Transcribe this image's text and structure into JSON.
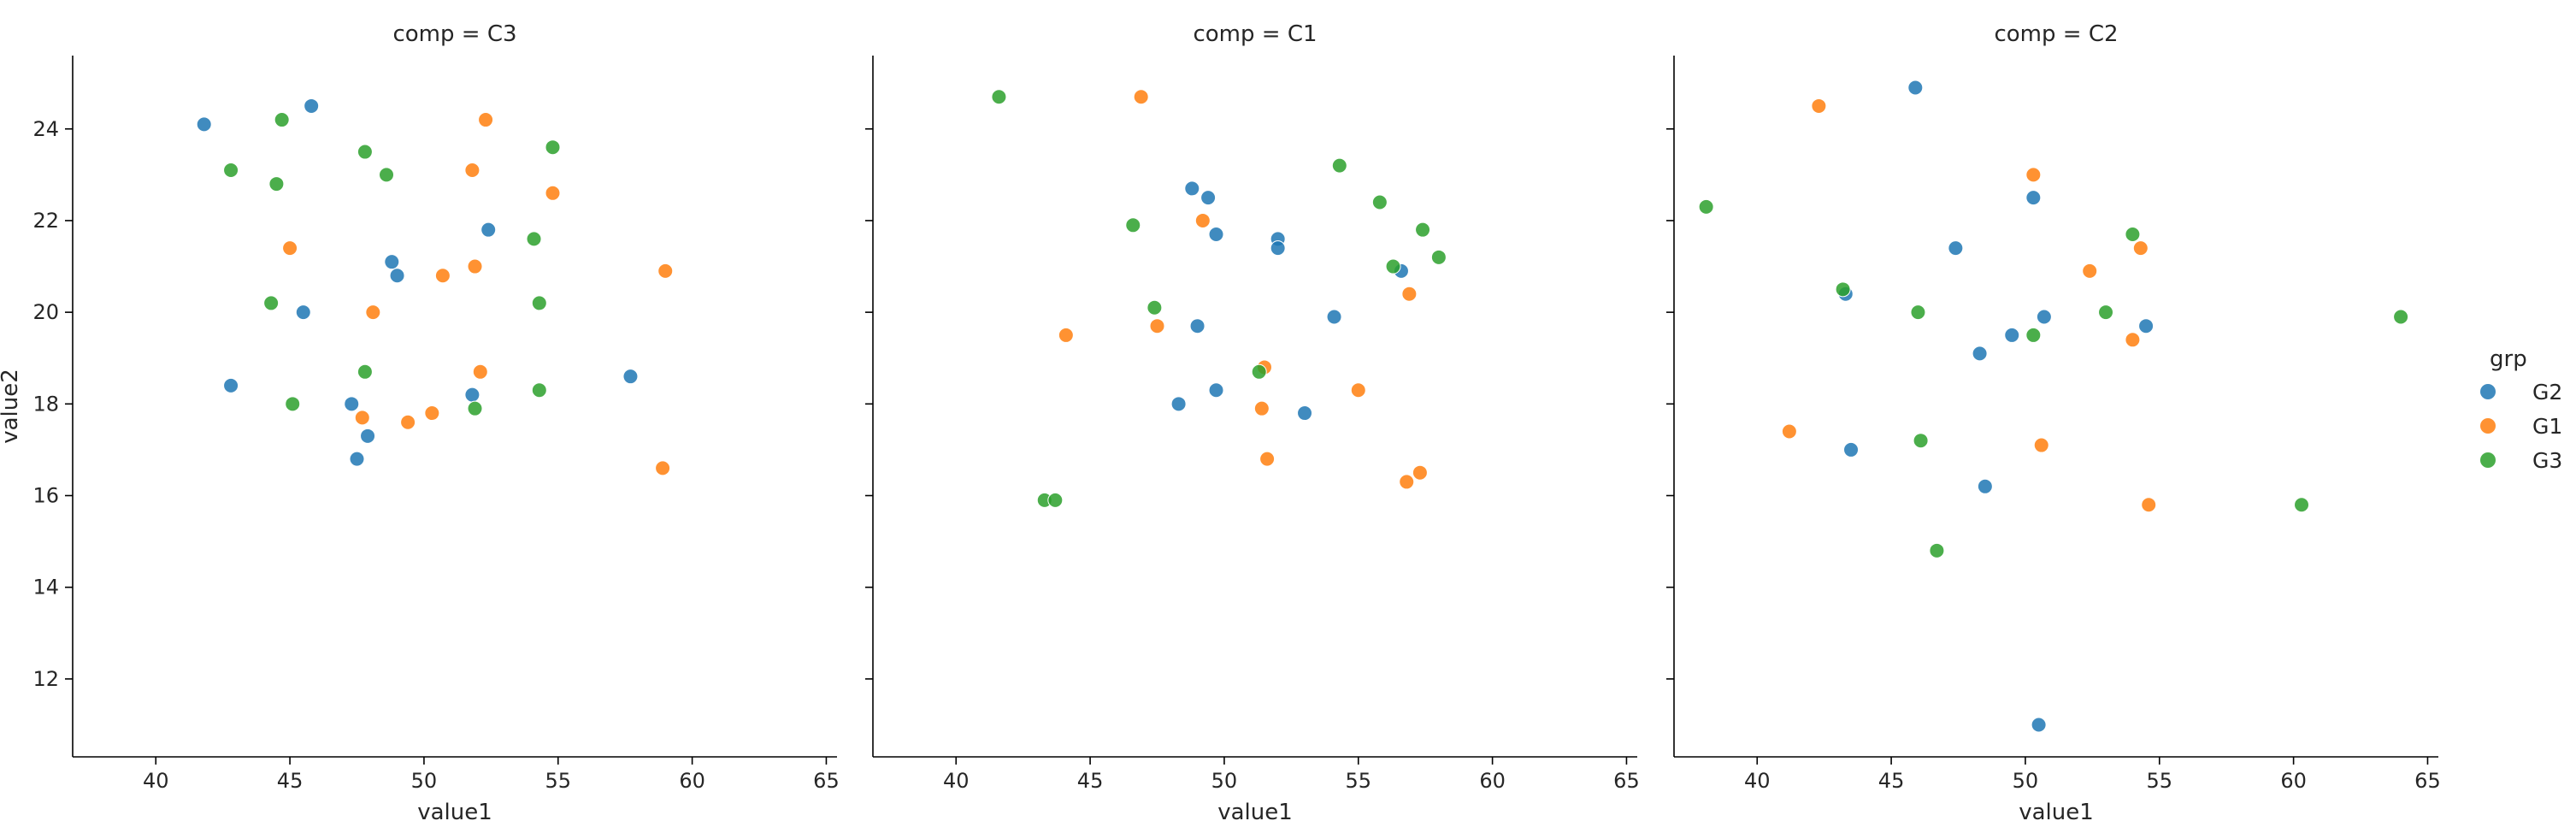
{
  "chart_data": {
    "type": "scatter",
    "xlabel": "value1",
    "ylabel": "value2",
    "xlim": [
      36.9,
      65.4
    ],
    "ylim": [
      10.3,
      25.6
    ],
    "xticks": [
      40,
      45,
      50,
      55,
      60,
      65
    ],
    "yticks": [
      12,
      14,
      16,
      18,
      20,
      22,
      24
    ],
    "grid": false,
    "legend": {
      "title": "grp",
      "position": "right",
      "entries": [
        {
          "name": "G2",
          "color": "#1f77b4"
        },
        {
          "name": "G1",
          "color": "#ff7f0e"
        },
        {
          "name": "G3",
          "color": "#2ca02c"
        }
      ]
    },
    "facets": [
      {
        "title": "comp = C3",
        "series": [
          {
            "name": "G2",
            "points": [
              [
                41.8,
                24.1
              ],
              [
                45.8,
                24.5
              ],
              [
                48.8,
                21.1
              ],
              [
                49.0,
                20.8
              ],
              [
                52.4,
                21.8
              ],
              [
                45.5,
                20.0
              ],
              [
                42.8,
                18.4
              ],
              [
                47.3,
                18.0
              ],
              [
                47.9,
                17.3
              ],
              [
                47.5,
                16.8
              ],
              [
                51.8,
                18.2
              ],
              [
                57.7,
                18.6
              ]
            ]
          },
          {
            "name": "G1",
            "points": [
              [
                52.3,
                24.2
              ],
              [
                51.8,
                23.1
              ],
              [
                54.8,
                22.6
              ],
              [
                45.0,
                21.4
              ],
              [
                51.9,
                21.0
              ],
              [
                50.7,
                20.8
              ],
              [
                48.1,
                20.0
              ],
              [
                59.0,
                20.9
              ],
              [
                52.1,
                18.7
              ],
              [
                47.7,
                17.7
              ],
              [
                49.4,
                17.6
              ],
              [
                50.3,
                17.8
              ],
              [
                58.9,
                16.6
              ]
            ]
          },
          {
            "name": "G3",
            "points": [
              [
                44.7,
                24.2
              ],
              [
                42.8,
                23.1
              ],
              [
                44.5,
                22.8
              ],
              [
                47.8,
                23.5
              ],
              [
                48.6,
                23.0
              ],
              [
                54.8,
                23.6
              ],
              [
                54.1,
                21.6
              ],
              [
                44.3,
                20.2
              ],
              [
                54.3,
                20.2
              ],
              [
                47.8,
                18.7
              ],
              [
                45.1,
                18.0
              ],
              [
                51.9,
                17.9
              ],
              [
                54.3,
                18.3
              ]
            ]
          }
        ]
      },
      {
        "title": "comp = C1",
        "series": [
          {
            "name": "G2",
            "points": [
              [
                48.8,
                22.7
              ],
              [
                49.4,
                22.5
              ],
              [
                49.7,
                21.7
              ],
              [
                52.0,
                21.6
              ],
              [
                52.0,
                21.4
              ],
              [
                49.0,
                19.7
              ],
              [
                54.1,
                19.9
              ],
              [
                48.3,
                18.0
              ],
              [
                49.7,
                18.3
              ],
              [
                53.0,
                17.8
              ],
              [
                56.6,
                20.9
              ]
            ]
          },
          {
            "name": "G1",
            "points": [
              [
                46.9,
                24.7
              ],
              [
                49.2,
                22.0
              ],
              [
                44.1,
                19.5
              ],
              [
                47.5,
                19.7
              ],
              [
                56.9,
                20.4
              ],
              [
                51.5,
                18.8
              ],
              [
                51.4,
                17.9
              ],
              [
                55.0,
                18.3
              ],
              [
                51.6,
                16.8
              ],
              [
                56.8,
                16.3
              ],
              [
                57.3,
                16.5
              ]
            ]
          },
          {
            "name": "G3",
            "points": [
              [
                41.6,
                24.7
              ],
              [
                54.3,
                23.2
              ],
              [
                55.8,
                22.4
              ],
              [
                46.6,
                21.9
              ],
              [
                57.4,
                21.8
              ],
              [
                56.3,
                21.0
              ],
              [
                58.0,
                21.2
              ],
              [
                47.4,
                20.1
              ],
              [
                51.3,
                18.7
              ],
              [
                43.3,
                15.9
              ],
              [
                43.7,
                15.9
              ]
            ]
          }
        ]
      },
      {
        "title": "comp = C2",
        "series": [
          {
            "name": "G2",
            "points": [
              [
                45.9,
                24.9
              ],
              [
                50.3,
                22.5
              ],
              [
                47.4,
                21.4
              ],
              [
                43.3,
                20.4
              ],
              [
                50.7,
                19.9
              ],
              [
                49.5,
                19.5
              ],
              [
                48.3,
                19.1
              ],
              [
                54.5,
                19.7
              ],
              [
                43.5,
                17.0
              ],
              [
                48.5,
                16.2
              ],
              [
                50.5,
                11.0
              ]
            ]
          },
          {
            "name": "G1",
            "points": [
              [
                42.3,
                24.5
              ],
              [
                50.3,
                23.0
              ],
              [
                52.4,
                20.9
              ],
              [
                54.3,
                21.4
              ],
              [
                54.0,
                19.4
              ],
              [
                41.2,
                17.4
              ],
              [
                50.6,
                17.1
              ],
              [
                54.6,
                15.8
              ]
            ]
          },
          {
            "name": "G3",
            "points": [
              [
                38.1,
                22.3
              ],
              [
                54.0,
                21.7
              ],
              [
                43.2,
                20.5
              ],
              [
                46.0,
                20.0
              ],
              [
                53.0,
                20.0
              ],
              [
                50.3,
                19.5
              ],
              [
                46.1,
                17.2
              ],
              [
                64.0,
                19.9
              ],
              [
                60.3,
                15.8
              ],
              [
                46.7,
                14.8
              ]
            ]
          }
        ]
      }
    ]
  }
}
